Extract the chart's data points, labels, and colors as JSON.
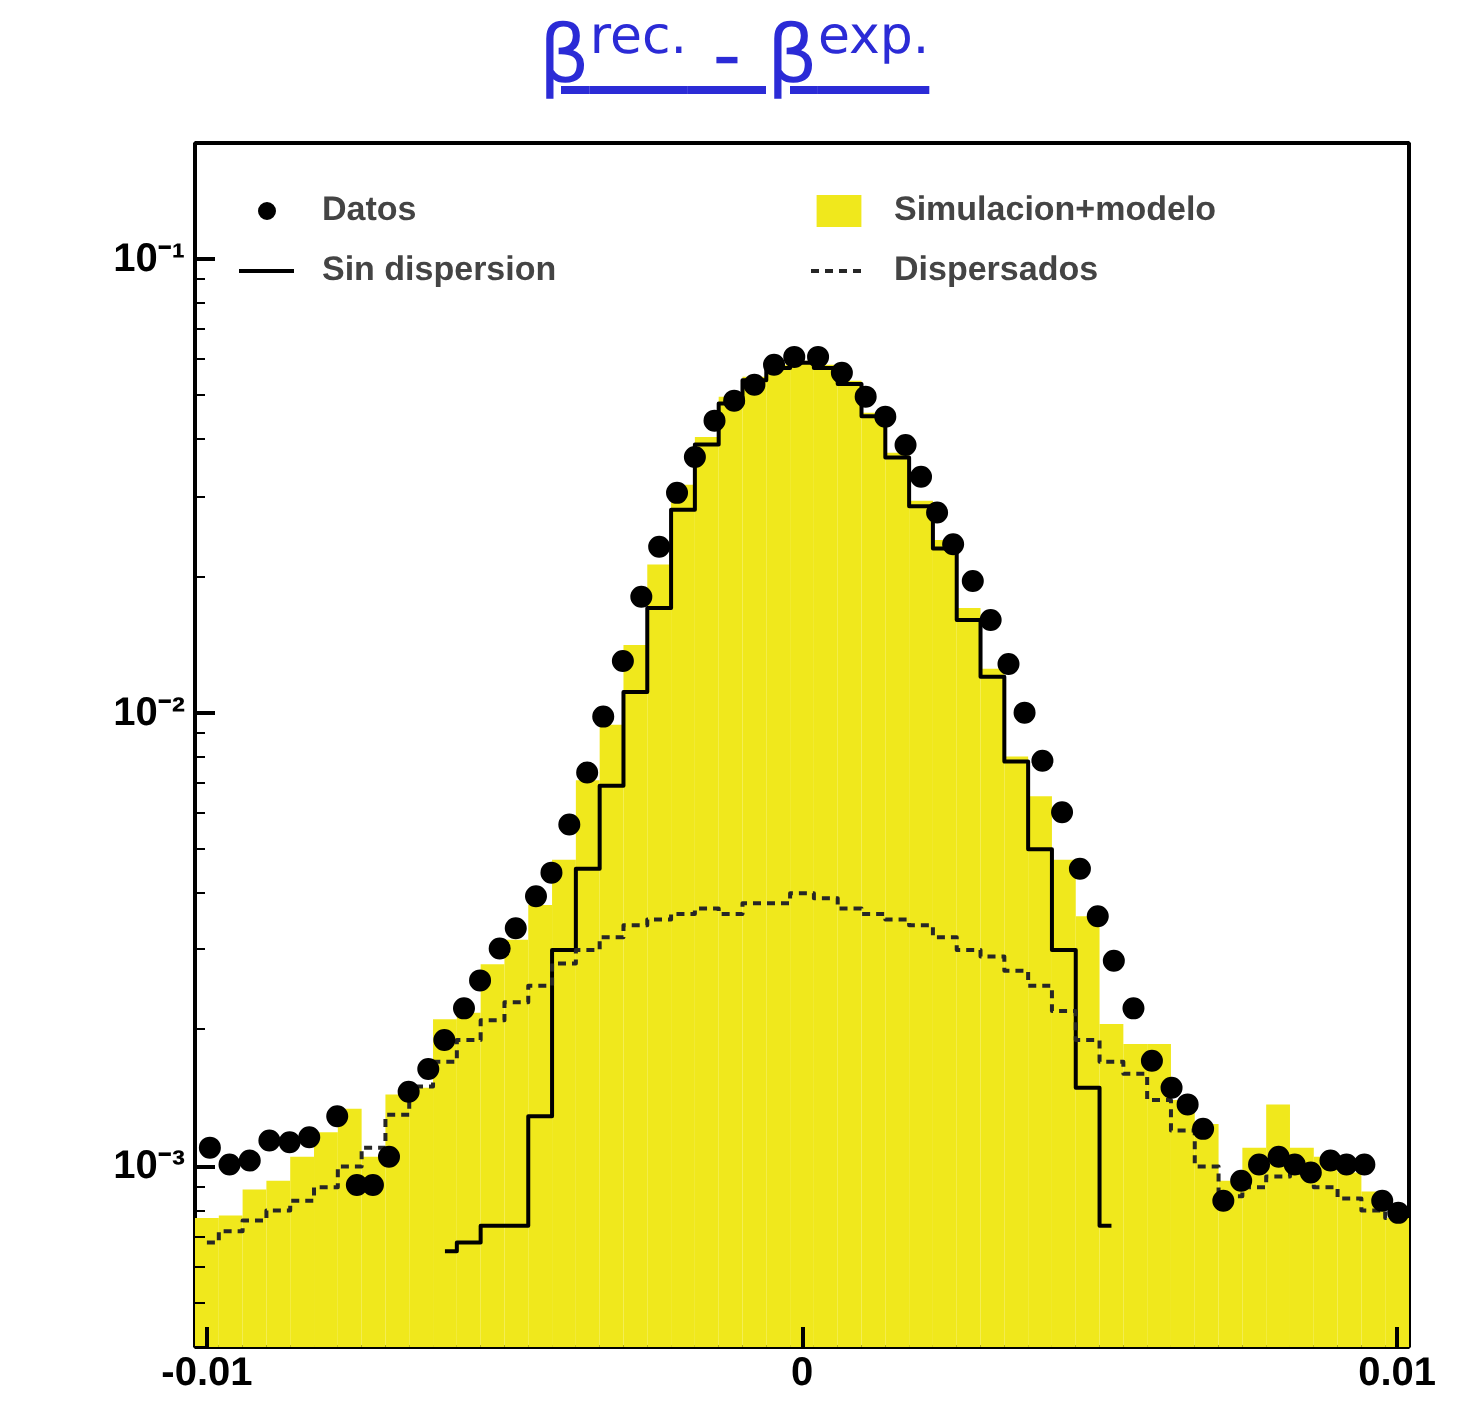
{
  "chart_data": {
    "type": "step",
    "title": "β$^{rec.}$ - β$^{exp.}$",
    "xlim": [
      -0.0102,
      0.0102
    ],
    "ylim": [
      0.0004,
      0.18
    ],
    "log": "y",
    "grid": false,
    "legend": "top",
    "xticks": [
      {
        "value": -0.01,
        "label": "-0.01"
      },
      0,
      {
        "value": 0.01,
        "label": "0.01"
      }
    ],
    "yticks": [
      {
        "value": 0.001,
        "label": "10⁻³"
      },
      {
        "value": 0.01,
        "label": "10⁻²"
      },
      {
        "value": 0.1,
        "label": "10⁻¹"
      }
    ],
    "bins": [
      -0.0102,
      -0.0098,
      -0.0094,
      -0.009,
      -0.0086,
      -0.0082,
      -0.0078,
      -0.0074,
      -0.007,
      -0.0066,
      -0.0062,
      -0.0058,
      -0.0054,
      -0.005,
      -0.0046,
      -0.0042,
      -0.0038,
      -0.0034,
      -0.003,
      -0.0026,
      -0.0022,
      -0.0018,
      -0.0014,
      -0.001,
      -0.0006,
      -0.0002,
      0.0002,
      0.0006,
      0.001,
      0.0014,
      0.0018,
      0.0022,
      0.0026,
      0.003,
      0.0034,
      0.0038,
      0.0042,
      0.0046,
      0.005,
      0.0054,
      0.0058,
      0.0062,
      0.0066,
      0.007,
      0.0074,
      0.0078,
      0.0082,
      0.0086,
      0.009,
      0.0094,
      0.0098,
      0.0102
    ],
    "series": [
      {
        "name": "Simulacion+modelo",
        "type": "histogram",
        "color": "#f0e81c",
        "values": [
          0.00077,
          0.00078,
          0.00089,
          0.00093,
          0.00105,
          0.00119,
          0.00134,
          0.00105,
          0.00144,
          0.00149,
          0.00211,
          0.00218,
          0.00279,
          0.00316,
          0.00377,
          0.00474,
          0.0071,
          0.0094,
          0.0141,
          0.0212,
          0.0318,
          0.0405,
          0.0497,
          0.055,
          0.0584,
          0.0596,
          0.0584,
          0.0539,
          0.0458,
          0.0374,
          0.0293,
          0.024,
          0.017,
          0.0125,
          0.008,
          0.00654,
          0.00474,
          0.00356,
          0.00206,
          0.00186,
          0.00186,
          0.0014,
          0.00124,
          0.00093,
          0.0011,
          0.00137,
          0.0011,
          0.00105,
          0.00097,
          0.00088,
          0.00077
        ]
      },
      {
        "name": "Sin dispersion",
        "color": "#000000",
        "line_style": "solid",
        "x": [
          -0.006,
          -0.0056,
          -0.0052,
          -0.0048,
          -0.0044,
          -0.004,
          -0.0036,
          -0.0032,
          -0.0028,
          -0.0024,
          -0.002,
          -0.0016,
          -0.0012,
          -0.0008,
          -0.0004,
          0,
          0.0004,
          0.0008,
          0.0012,
          0.0016,
          0.002,
          0.0024,
          0.0028,
          0.0032,
          0.0036,
          0.004,
          0.0044,
          0.0048,
          0.0052
        ],
        "values": [
          0.00065,
          0.00068,
          0.00074,
          0.00074,
          0.00129,
          0.003,
          0.00453,
          0.0069,
          0.0111,
          0.017,
          0.028,
          0.039,
          0.048,
          0.054,
          0.0575,
          0.059,
          0.0575,
          0.053,
          0.045,
          0.0365,
          0.0285,
          0.023,
          0.016,
          0.012,
          0.0078,
          0.005,
          0.003,
          0.00149,
          0.00074
        ]
      },
      {
        "name": "Dispersados",
        "color": "#262626",
        "line_style": "dashed",
        "x": [
          -0.01,
          -0.0096,
          -0.0092,
          -0.0088,
          -0.0084,
          -0.008,
          -0.0076,
          -0.0072,
          -0.0068,
          -0.0064,
          -0.006,
          -0.0056,
          -0.0052,
          -0.0048,
          -0.0044,
          -0.004,
          -0.0036,
          -0.0032,
          -0.0028,
          -0.0024,
          -0.002,
          -0.0016,
          -0.0012,
          -0.0008,
          -0.0004,
          0,
          0.0004,
          0.0008,
          0.0012,
          0.0016,
          0.002,
          0.0024,
          0.0028,
          0.0032,
          0.0036,
          0.004,
          0.0044,
          0.0048,
          0.0052,
          0.0056,
          0.006,
          0.0064,
          0.0068,
          0.0072,
          0.0076,
          0.008,
          0.0084,
          0.0088,
          0.0092,
          0.0096,
          0.01
        ],
        "values": [
          0.00068,
          0.00072,
          0.00076,
          0.0008,
          0.00084,
          0.0009,
          0.001,
          0.0011,
          0.0013,
          0.0015,
          0.0017,
          0.0019,
          0.0021,
          0.0023,
          0.0025,
          0.0028,
          0.003,
          0.0032,
          0.0034,
          0.0035,
          0.0036,
          0.0037,
          0.0036,
          0.0038,
          0.0038,
          0.004,
          0.0039,
          0.0037,
          0.0036,
          0.0035,
          0.0034,
          0.0032,
          0.003,
          0.0029,
          0.0027,
          0.0025,
          0.0022,
          0.0019,
          0.0017,
          0.0016,
          0.0014,
          0.0012,
          0.001,
          0.00086,
          0.0009,
          0.00095,
          0.00097,
          0.0009,
          0.00085,
          0.0008,
          0.00077
        ]
      },
      {
        "name": "Datos",
        "type": "scatter",
        "marker": "circle",
        "color": "#000000",
        "x": [
          -0.00995,
          -0.00962,
          -0.00928,
          -0.00895,
          -0.00861,
          -0.00828,
          -0.00781,
          -0.00748,
          -0.00721,
          -0.00694,
          -0.00661,
          -0.00628,
          -0.00601,
          -0.00568,
          -0.00541,
          -0.00508,
          -0.00481,
          -0.00447,
          -0.00421,
          -0.00391,
          -0.00361,
          -0.00334,
          -0.00301,
          -0.0027,
          -0.0024,
          -0.0021,
          -0.0018,
          -0.00147,
          -0.00114,
          -0.0008,
          -0.00047,
          -0.00013,
          0.00027,
          0.00067,
          0.00107,
          0.0014,
          0.00174,
          0.002,
          0.00227,
          0.00254,
          0.00287,
          0.00317,
          0.00347,
          0.00374,
          0.00404,
          0.00437,
          0.00467,
          0.00497,
          0.00524,
          0.00557,
          0.00588,
          0.00621,
          0.00648,
          0.00674,
          0.00708,
          0.00738,
          0.00768,
          0.00801,
          0.00828,
          0.00855,
          0.00888,
          0.00915,
          0.00945,
          0.00975,
          0.01002
        ],
        "values": [
          0.0011,
          0.00101,
          0.00103,
          0.00114,
          0.00113,
          0.00116,
          0.00129,
          0.00091,
          0.00091,
          0.00105,
          0.00146,
          0.00164,
          0.0019,
          0.00223,
          0.00257,
          0.00302,
          0.00335,
          0.00394,
          0.00444,
          0.00567,
          0.00738,
          0.0098,
          0.013,
          0.018,
          0.0232,
          0.0305,
          0.0366,
          0.044,
          0.0487,
          0.0528,
          0.0584,
          0.0608,
          0.0608,
          0.0561,
          0.0497,
          0.0449,
          0.0389,
          0.0331,
          0.0276,
          0.0235,
          0.0195,
          0.016,
          0.0128,
          0.01,
          0.00783,
          0.00603,
          0.00453,
          0.00356,
          0.00284,
          0.00223,
          0.00171,
          0.00149,
          0.00137,
          0.00121,
          0.00084,
          0.00093,
          0.00101,
          0.00105,
          0.00101,
          0.00097,
          0.00103,
          0.00101,
          0.00101,
          0.00084,
          0.00079
        ]
      }
    ]
  }
}
